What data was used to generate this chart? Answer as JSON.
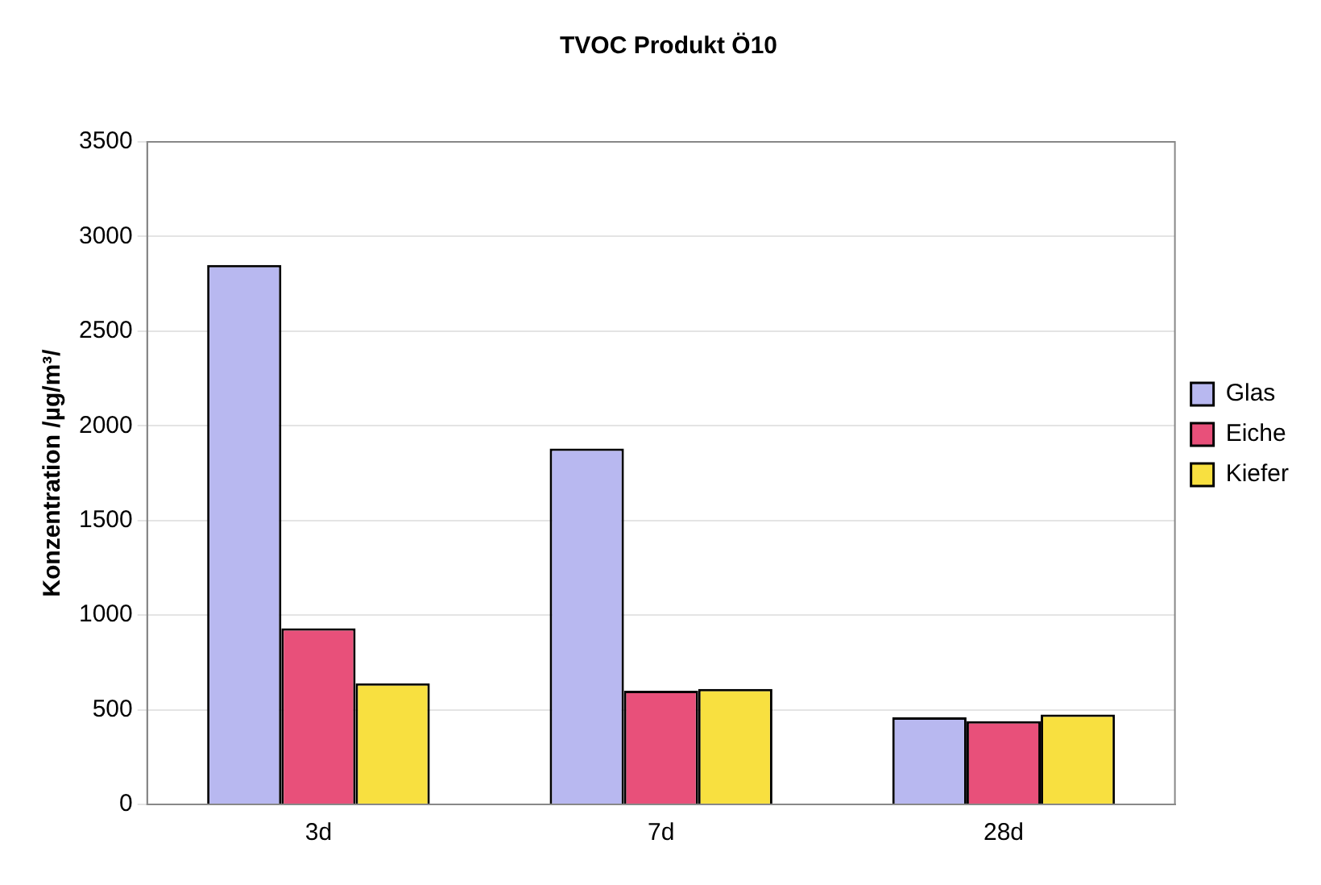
{
  "chart_data": {
    "type": "bar",
    "title": "TVOC Produkt Ö10",
    "ylabel": "Konzentration /µg/m³/",
    "categories": [
      "3d",
      "7d",
      "28d"
    ],
    "series": [
      {
        "name": "Glas",
        "color": "#b8b8f0",
        "values": [
          2850,
          1880,
          460
        ]
      },
      {
        "name": "Eiche",
        "color": "#e8507a",
        "values": [
          930,
          600,
          440
        ]
      },
      {
        "name": "Kiefer",
        "color": "#f8e040",
        "values": [
          640,
          610,
          475
        ]
      }
    ],
    "ylim": [
      0,
      3500
    ],
    "yticks": [
      0,
      500,
      1000,
      1500,
      2000,
      2500,
      3000,
      3500
    ],
    "grid": "y",
    "legend": "right"
  }
}
